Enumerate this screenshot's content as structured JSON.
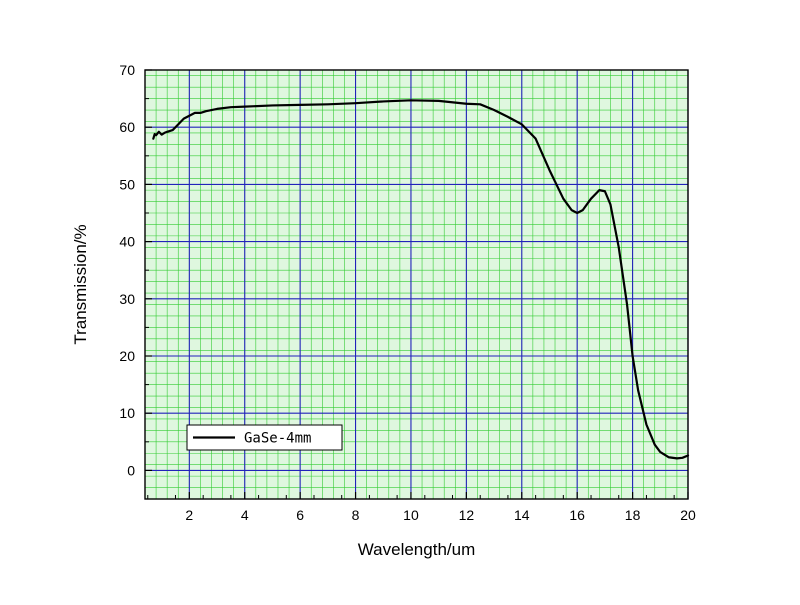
{
  "chart_data": {
    "type": "line",
    "xlabel": "Wavelength/um",
    "ylabel": "Transmission/%",
    "xlim": [
      0.4,
      20
    ],
    "ylim": [
      -5,
      70
    ],
    "x_ticks": [
      2,
      4,
      6,
      8,
      10,
      12,
      14,
      16,
      18,
      20
    ],
    "y_ticks": [
      0,
      10,
      20,
      30,
      40,
      50,
      60,
      70
    ],
    "grid": {
      "major": true,
      "minor": true
    },
    "legend_position": "bottom-left",
    "colors": {
      "plot_background": "#dff7df",
      "minor_grid": "#33cc33",
      "major_grid": "#2222bb",
      "line": "#000000"
    },
    "series": [
      {
        "name": "GaSe-4mm",
        "x": [
          0.7,
          0.75,
          0.8,
          0.9,
          1.0,
          1.1,
          1.2,
          1.4,
          1.6,
          1.8,
          2.0,
          2.2,
          2.4,
          2.6,
          3.0,
          3.5,
          4.0,
          5.0,
          6.0,
          7.0,
          8.0,
          9.0,
          10.0,
          11.0,
          12.0,
          12.5,
          13.0,
          13.5,
          14.0,
          14.5,
          15.0,
          15.5,
          15.8,
          16.0,
          16.2,
          16.5,
          16.8,
          17.0,
          17.2,
          17.5,
          17.8,
          18.0,
          18.2,
          18.5,
          18.8,
          19.0,
          19.3,
          19.6,
          19.8,
          20.0
        ],
        "y": [
          58,
          58.8,
          58.6,
          59.2,
          58.7,
          59.0,
          59.2,
          59.5,
          60.5,
          61.5,
          62.0,
          62.5,
          62.5,
          62.8,
          63.2,
          63.5,
          63.6,
          63.8,
          63.9,
          64.0,
          64.2,
          64.5,
          64.7,
          64.6,
          64.1,
          64.0,
          63.0,
          61.8,
          60.5,
          58.0,
          52.5,
          47.5,
          45.5,
          45.0,
          45.5,
          47.5,
          49.0,
          48.8,
          46.5,
          39.0,
          29.0,
          20.0,
          14.0,
          8.0,
          4.5,
          3.2,
          2.3,
          2.1,
          2.2,
          2.6
        ]
      }
    ]
  }
}
